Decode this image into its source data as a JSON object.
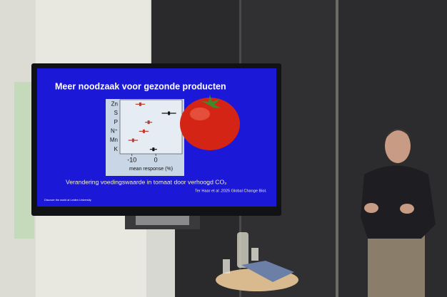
{
  "slide": {
    "title": "Meer noodzaak voor gezonde producten",
    "chart": {
      "categories": [
        "Zn",
        "S",
        "P",
        "N⁺",
        "Mn",
        "K"
      ],
      "values": [
        -6.5,
        5.5,
        -3,
        -5,
        -9.5,
        -1
      ],
      "errors": [
        2,
        3,
        1.5,
        2,
        2,
        1.5
      ],
      "colors": [
        "#c0392b",
        "#111111",
        "#c0392b",
        "#c0392b",
        "#c0392b",
        "#111111"
      ],
      "xlim": [
        -15,
        11
      ],
      "xticks": [
        -10,
        0
      ],
      "xlabel": "mean response (%)"
    },
    "caption": "Verandering voedingswaarde in tomaat door verhoogd CO₂",
    "citation": "Ter Haar et al .2025 Global Change Biol.",
    "footer": "Discover the world at Leiden University"
  }
}
